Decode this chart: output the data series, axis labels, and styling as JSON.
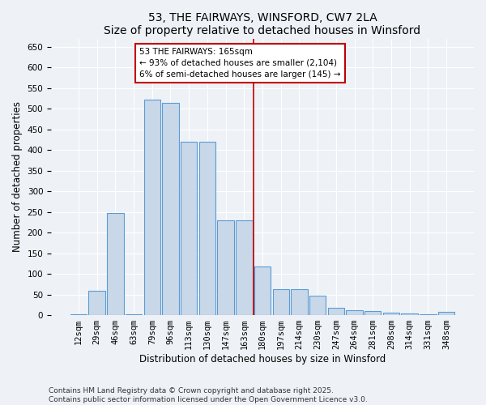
{
  "title": "53, THE FAIRWAYS, WINSFORD, CW7 2LA",
  "subtitle": "Size of property relative to detached houses in Winsford",
  "xlabel": "Distribution of detached houses by size in Winsford",
  "ylabel": "Number of detached properties",
  "categories": [
    "12sqm",
    "29sqm",
    "46sqm",
    "63sqm",
    "79sqm",
    "96sqm",
    "113sqm",
    "130sqm",
    "147sqm",
    "163sqm",
    "180sqm",
    "197sqm",
    "214sqm",
    "230sqm",
    "247sqm",
    "264sqm",
    "281sqm",
    "298sqm",
    "314sqm",
    "331sqm",
    "348sqm"
  ],
  "values": [
    2,
    60,
    248,
    3,
    522,
    515,
    420,
    420,
    230,
    230,
    118,
    63,
    63,
    47,
    18,
    12,
    10,
    7,
    5,
    2,
    8
  ],
  "bar_color": "#c8d8e8",
  "bar_edge_color": "#5b9bd5",
  "vline_x_index": 9,
  "vline_color": "#c00000",
  "annotation_text": "53 THE FAIRWAYS: 165sqm\n← 93% of detached houses are smaller (2,104)\n6% of semi-detached houses are larger (145) →",
  "annotation_box_color": "#ffffff",
  "annotation_box_edge_color": "#c00000",
  "ylim": [
    0,
    670
  ],
  "yticks": [
    0,
    50,
    100,
    150,
    200,
    250,
    300,
    350,
    400,
    450,
    500,
    550,
    600,
    650
  ],
  "background_color": "#eef2f7",
  "footer_text": "Contains HM Land Registry data © Crown copyright and database right 2025.\nContains public sector information licensed under the Open Government Licence v3.0.",
  "title_fontsize": 10,
  "xlabel_fontsize": 8.5,
  "ylabel_fontsize": 8.5,
  "tick_fontsize": 7.5,
  "annotation_fontsize": 7.5,
  "footer_fontsize": 6.5
}
